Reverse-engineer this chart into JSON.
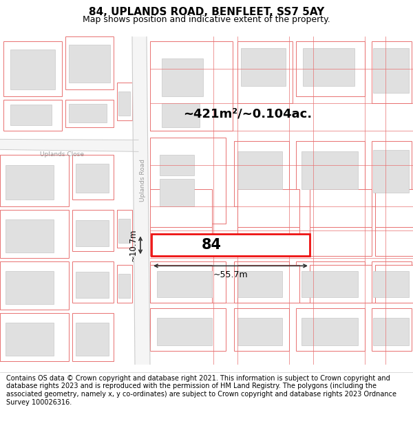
{
  "title": "84, UPLANDS ROAD, BENFLEET, SS7 5AY",
  "subtitle": "Map shows position and indicative extent of the property.",
  "footer": "Contains OS data © Crown copyright and database right 2021. This information is subject to Crown copyright and database rights 2023 and is reproduced with the permission of HM Land Registry. The polygons (including the associated geometry, namely x, y co-ordinates) are subject to Crown copyright and database rights 2023 Ordnance Survey 100026316.",
  "map_bg": "#ffffff",
  "parcel_edge": "#e87070",
  "parcel_fill": "#ffffff",
  "building_fill": "#e0e0e0",
  "building_edge": "#c8c8c8",
  "road_fill": "#f0f0f0",
  "road_edge": "#cccccc",
  "highlight_color": "#ee1111",
  "highlight_fill": "#ffffff",
  "dim_color": "#333333",
  "area_text": "~421m²/~0.104ac.",
  "number_text": "84",
  "width_text": "~55.7m",
  "height_text": "~10.7m",
  "road_label1": "Uplands Road",
  "road_label2": "Uplands Close",
  "footer_fontsize": 7.0,
  "title_fontsize": 11,
  "subtitle_fontsize": 9
}
